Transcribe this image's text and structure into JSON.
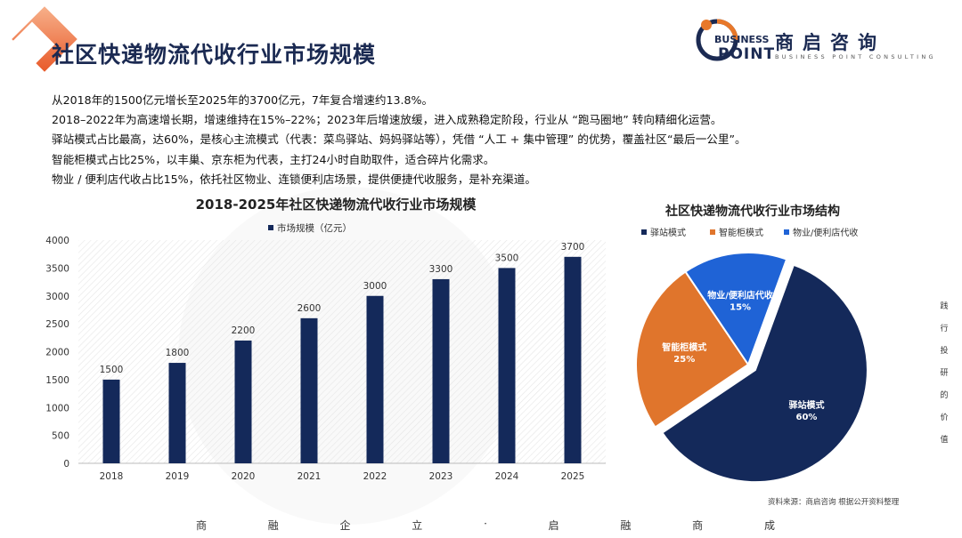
{
  "page": {
    "title": "社区快递物流代收行业市场规模"
  },
  "logo": {
    "word1": "BUSINESS",
    "word2": "POINT",
    "cn": "商启咨询",
    "en": "BUSINESS POINT CONSULTING",
    "colors": {
      "navy": "#1b2a52",
      "orange": "#e8782a"
    }
  },
  "summary": [
    "从2018年的1500亿元增长至2025年的3700亿元，7年复合增速约13.8%。",
    "2018–2022年为高速增长期，增速维持在15%–22%；2023年后增速放缓，进入成熟稳定阶段，行业从 “跑马圈地” 转向精细化运营。",
    "驿站模式占比最高，达60%，是核心主流模式（代表：菜鸟驿站、妈妈驿站等），凭借 “人工 + 集中管理” 的优势，覆盖社区“最后一公里”。",
    "智能柜模式占比25%，以丰巢、京东柜为代表，主打24小时自助取件，适合碎片化需求。",
    "物业 / 便利店代收占比15%，依托社区物业、连锁便利店场景，提供便捷代收服务，是补充渠道。"
  ],
  "chart_data": [
    {
      "type": "bar",
      "title": "2018-2025年社区快递物流代收行业市场规模",
      "categories": [
        "2018",
        "2019",
        "2020",
        "2021",
        "2022",
        "2023",
        "2024",
        "2025"
      ],
      "series": [
        {
          "name": "市场规模（亿元）",
          "values": [
            1500,
            1800,
            2200,
            2600,
            3000,
            3300,
            3500,
            3700
          ],
          "color": "#14295a"
        }
      ],
      "ylim": [
        0,
        4000
      ],
      "yticks": [
        "0",
        "500",
        "1000",
        "1500",
        "2000",
        "2500",
        "3000",
        "3500",
        "4000"
      ],
      "data_labels": true,
      "legend": "top",
      "grid": false
    },
    {
      "type": "pie",
      "title": "社区快递物流代收行业市场结构",
      "slices": [
        {
          "label": "驿站模式",
          "value": 60,
          "value_label": "60%",
          "color": "#14295a"
        },
        {
          "label": "智能柜模式",
          "value": 25,
          "value_label": "25%",
          "color": "#e0752c"
        },
        {
          "label": "物业/便利店代收",
          "value": 15,
          "value_label": "15%",
          "color": "#1f63d6"
        }
      ],
      "legend": "top"
    }
  ],
  "side_text": [
    "践",
    "行",
    "投",
    "研",
    "的",
    "价",
    "值"
  ],
  "source": "资料来源：商启咨询 根据公开资料整理",
  "footer": [
    "商",
    "融",
    "企",
    "立",
    "·",
    "启",
    "融",
    "商",
    "成"
  ]
}
